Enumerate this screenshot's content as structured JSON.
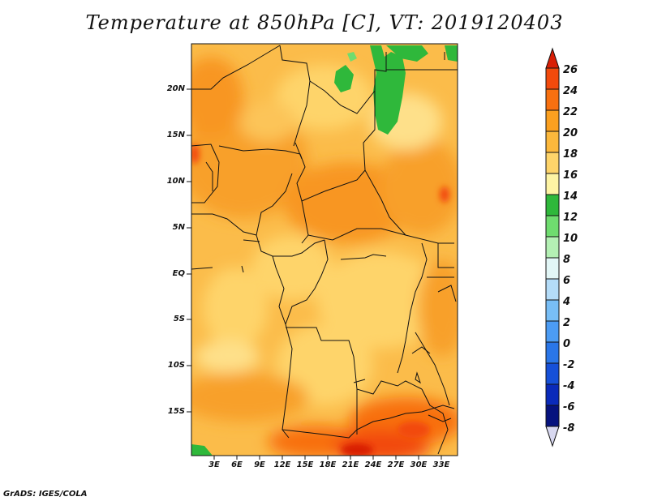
{
  "title": "Temperature at 850hPa [C], VT: 2019120403",
  "footer": "GrADS: IGES/COLA",
  "map": {
    "latitude_labels": [
      "20N",
      "15N",
      "10N",
      "5N",
      "EQ",
      "5S",
      "10S",
      "15S"
    ],
    "longitude_labels": [
      "3E",
      "6E",
      "9E",
      "12E",
      "15E",
      "18E",
      "21E",
      "24E",
      "27E",
      "30E",
      "33E"
    ]
  },
  "colorbar": {
    "labels": [
      "26",
      "24",
      "22",
      "20",
      "18",
      "16",
      "14",
      "12",
      "10",
      "8",
      "6",
      "4",
      "2",
      "0",
      "-2",
      "-4",
      "-6",
      "-8"
    ],
    "colors": [
      "#d81e05",
      "#f24a0c",
      "#f87010",
      "#fba020",
      "#fcb83c",
      "#fed46a",
      "#fef4a4",
      "#2fb83b",
      "#6fdc6f",
      "#b4f0b4",
      "#e2f6f6",
      "#b4dcf8",
      "#78bef6",
      "#4c9cf4",
      "#2a76e8",
      "#1650d8",
      "#0a2aba",
      "#06127e",
      "#d8d8f0"
    ]
  }
}
